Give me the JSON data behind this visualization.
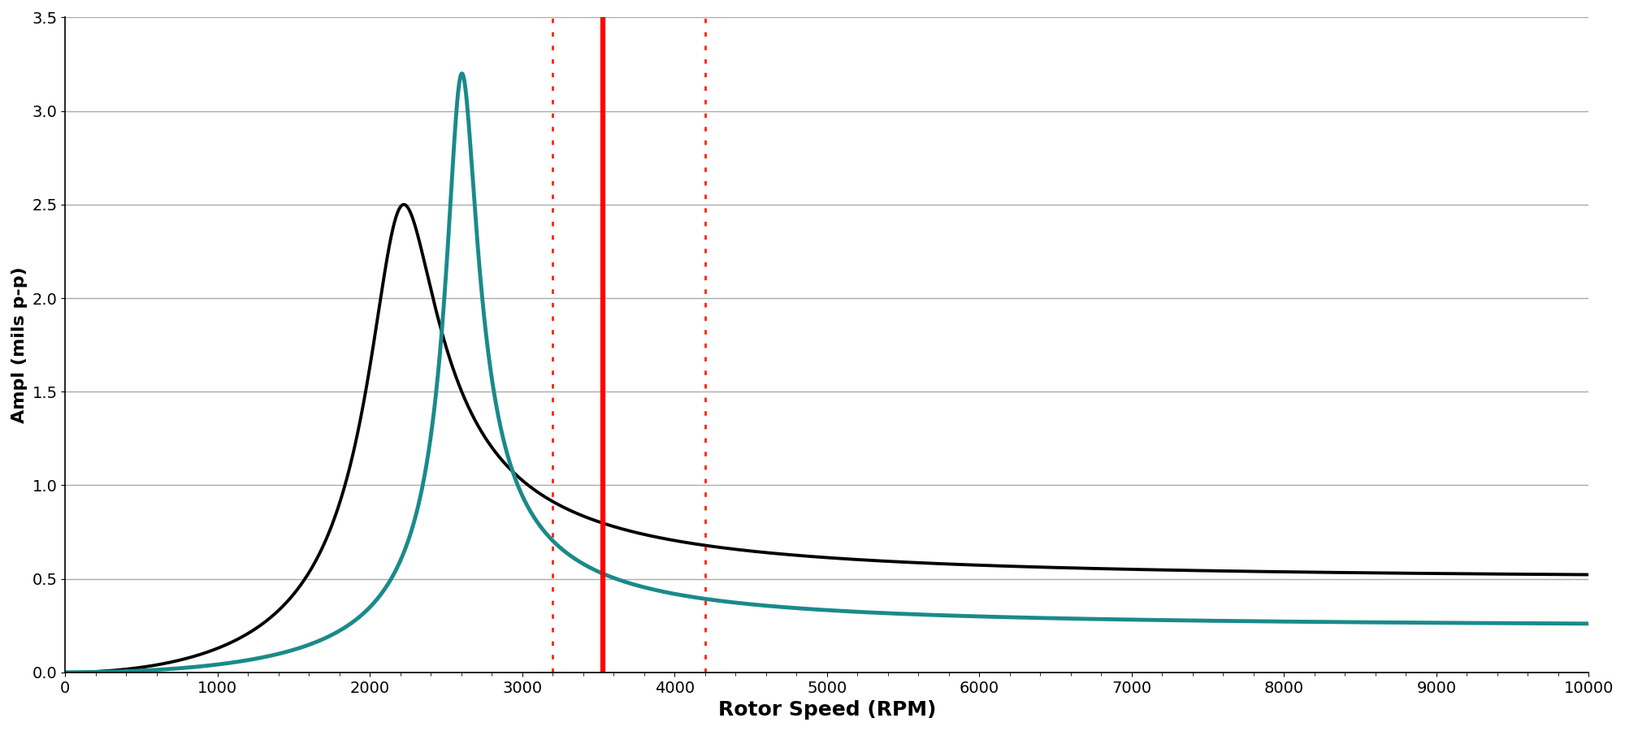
{
  "title": "",
  "xlabel": "Rotor Speed (RPM)",
  "ylabel": "Ampl (mils p-p)",
  "xlim": [
    0,
    10000
  ],
  "ylim": [
    0,
    3.5
  ],
  "xticks": [
    0,
    1000,
    2000,
    3000,
    4000,
    5000,
    6000,
    7000,
    8000,
    9000,
    10000
  ],
  "yticks": [
    0,
    0.5,
    1.0,
    1.5,
    2.0,
    2.5,
    3.0,
    3.5
  ],
  "black_curve": {
    "omega_n": 2200,
    "zeta": 0.1,
    "peak_amp": 2.5,
    "color": "#000000",
    "linewidth": 2.8
  },
  "teal_curve": {
    "omega_n": 2600,
    "zeta": 0.038,
    "peak_amp": 3.2,
    "color": "#1a8a8a",
    "linewidth": 3.5
  },
  "vlines": [
    {
      "x": 3200,
      "color": "#ff2200",
      "linestyle": "dotted",
      "linewidth": 2.0
    },
    {
      "x": 3530,
      "color": "#ff0000",
      "linestyle": "solid",
      "linewidth": 4.5
    },
    {
      "x": 4200,
      "color": "#ff2200",
      "linestyle": "dotted",
      "linewidth": 2.0
    }
  ],
  "background_color": "#ffffff",
  "grid_color": "#888888",
  "grid_alpha": 0.7,
  "grid_linewidth": 1.0,
  "xlabel_fontsize": 18,
  "ylabel_fontsize": 16,
  "tick_fontsize": 14,
  "xlabel_fontweight": "bold",
  "ylabel_fontweight": "bold"
}
